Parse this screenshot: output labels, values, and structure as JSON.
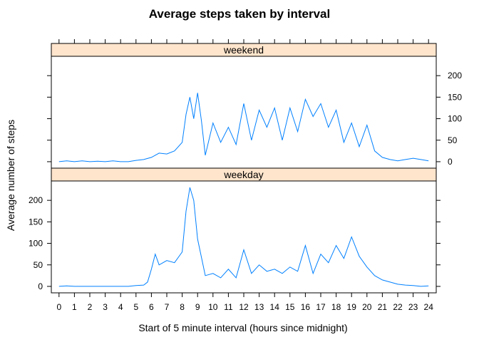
{
  "chart_data": {
    "type": "line",
    "title": "Average steps taken by interval",
    "xlabel": "Start of 5 minute interval (hours since midnight)",
    "ylabel": "Average number of steps",
    "xlim": [
      -0.5,
      24.5
    ],
    "ylim": [
      -15,
      245
    ],
    "x_ticks": [
      0,
      1,
      2,
      3,
      4,
      5,
      6,
      7,
      8,
      9,
      10,
      11,
      12,
      13,
      14,
      15,
      16,
      17,
      18,
      19,
      20,
      21,
      22,
      23,
      24
    ],
    "y_ticks": [
      0,
      50,
      100,
      150,
      200
    ],
    "line_color": "#0080ff",
    "strip_color": "#ffe5cc",
    "panels": [
      {
        "name": "weekend",
        "y_axis_side": "right",
        "x": [
          0,
          0.5,
          1,
          1.5,
          2,
          2.5,
          3,
          3.5,
          4,
          4.5,
          5,
          5.5,
          6,
          6.5,
          7,
          7.5,
          8,
          8.25,
          8.5,
          8.75,
          9,
          9.25,
          9.5,
          10,
          10.5,
          11,
          11.5,
          12,
          12.5,
          13,
          13.5,
          14,
          14.5,
          15,
          15.5,
          16,
          16.5,
          17,
          17.5,
          18,
          18.5,
          19,
          19.5,
          20,
          20.5,
          21,
          21.5,
          22,
          22.5,
          23,
          23.5,
          24
        ],
        "values": [
          0,
          2,
          0,
          2,
          0,
          1,
          0,
          2,
          0,
          0,
          3,
          5,
          10,
          20,
          18,
          25,
          45,
          110,
          150,
          100,
          160,
          95,
          15,
          90,
          45,
          80,
          40,
          135,
          50,
          120,
          80,
          125,
          50,
          125,
          70,
          145,
          105,
          135,
          80,
          120,
          45,
          90,
          35,
          85,
          25,
          10,
          5,
          2,
          5,
          8,
          5,
          2
        ]
      },
      {
        "name": "weekday",
        "y_axis_side": "left",
        "x": [
          0,
          0.5,
          1,
          1.5,
          2,
          2.5,
          3,
          3.5,
          4,
          4.5,
          5,
          5.5,
          5.75,
          6,
          6.25,
          6.5,
          7,
          7.5,
          8,
          8.25,
          8.5,
          8.75,
          9,
          9.5,
          10,
          10.5,
          11,
          11.5,
          12,
          12.5,
          13,
          13.5,
          14,
          14.5,
          15,
          15.5,
          16,
          16.5,
          17,
          17.5,
          18,
          18.5,
          19,
          19.5,
          20,
          20.5,
          21,
          21.5,
          22,
          22.5,
          23,
          23.5,
          24
        ],
        "values": [
          0,
          1,
          0,
          0,
          0,
          0,
          0,
          0,
          0,
          0,
          2,
          3,
          10,
          40,
          75,
          50,
          60,
          55,
          80,
          175,
          230,
          200,
          110,
          25,
          30,
          20,
          40,
          20,
          85,
          30,
          50,
          35,
          40,
          30,
          45,
          35,
          95,
          30,
          75,
          55,
          95,
          65,
          115,
          70,
          45,
          25,
          15,
          10,
          5,
          3,
          2,
          0,
          1
        ]
      }
    ]
  }
}
